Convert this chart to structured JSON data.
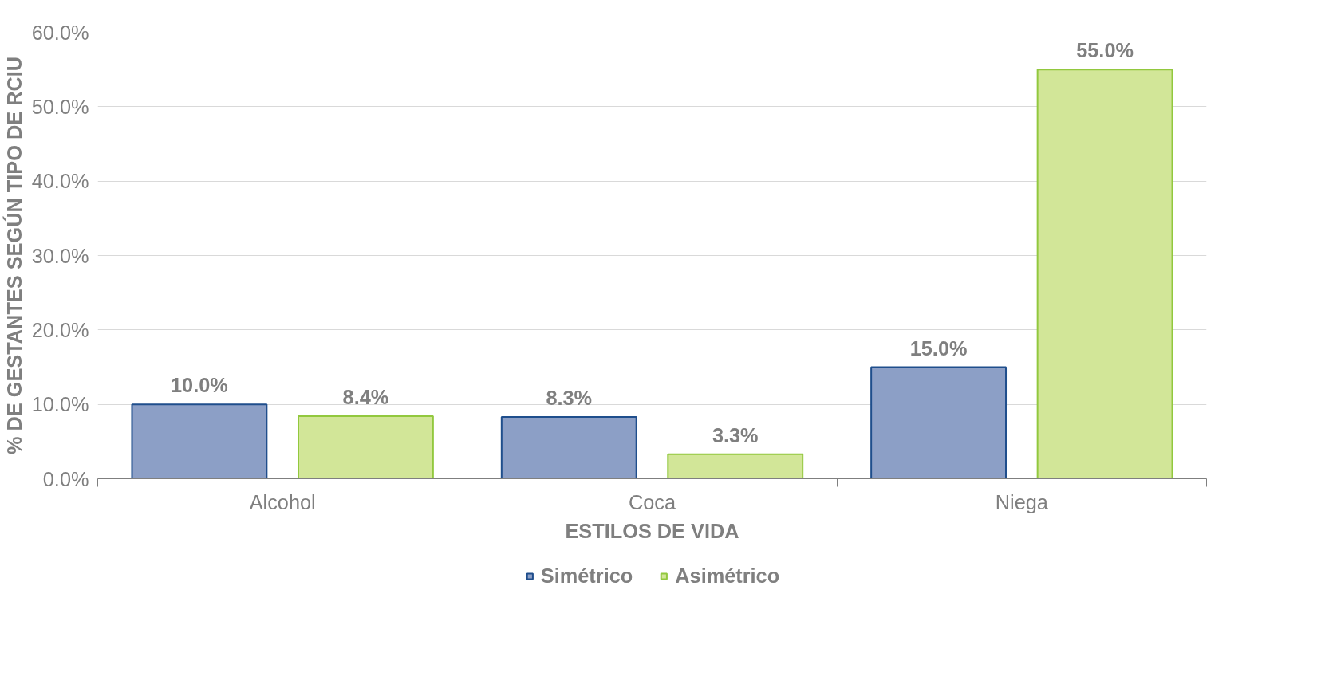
{
  "chart_data": {
    "type": "bar",
    "xlabel": "ESTILOS DE VIDA",
    "ylabel": "% DE GESTANTES SEGÚN TIPO DE RCIU",
    "categories": [
      "Alcohol",
      "Coca",
      "Niega"
    ],
    "series": [
      {
        "name": "Simétrico",
        "color": "#8c9fc6",
        "values": [
          10.0,
          8.3,
          15.0
        ],
        "value_labels": [
          "10.0%",
          "8.3%",
          "15.0%"
        ]
      },
      {
        "name": "Asimétrico",
        "color": "#d2e698",
        "values": [
          8.4,
          3.3,
          55.0
        ],
        "value_labels": [
          "8.4%",
          "3.3%",
          "55.0%"
        ]
      }
    ],
    "ylim": [
      0,
      60
    ],
    "yticks": [
      {
        "value": 0,
        "label": "0.0%"
      },
      {
        "value": 10,
        "label": "10.0%"
      },
      {
        "value": 20,
        "label": "20.0%"
      },
      {
        "value": 30,
        "label": "30.0%"
      },
      {
        "value": 40,
        "label": "40.0%"
      },
      {
        "value": 50,
        "label": "50.0%"
      },
      {
        "value": 60,
        "label": "60.0%"
      }
    ],
    "grid": "y",
    "legend": "bottom"
  }
}
